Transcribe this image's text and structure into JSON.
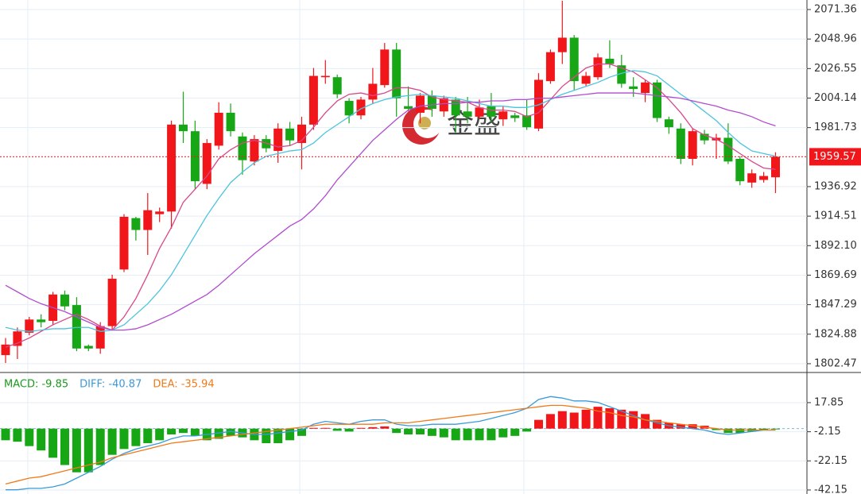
{
  "chart_data": [
    {
      "type": "candlestick",
      "watermark": "金盛",
      "ylim": [
        1796.4,
        2078.6
      ],
      "yticks": [
        2071.36,
        2048.96,
        2026.55,
        2004.14,
        1981.73,
        1936.92,
        1914.51,
        {
          "value": 1892.1,
          "label": "1892.10"
        },
        1869.69,
        1847.29,
        1824.88,
        1802.47
      ],
      "grid": true,
      "up_color": "#f0161a",
      "down_color": "#17a616",
      "last_price": 1959.57,
      "open": [
        1809,
        1816,
        1826,
        1836,
        1835,
        1855,
        1847,
        1816,
        1814,
        1831,
        1874,
        1913,
        1904,
        1916,
        1918,
        1984,
        1979,
        1939,
        1968,
        1993,
        1975,
        1956,
        1973,
        1964,
        1981,
        1970,
        1984,
        2020,
        2020,
        2002,
        1991,
        2003,
        2014,
        2041,
        1998,
        1993,
        2006,
        1994,
        2003,
        1994,
        1990,
        1998,
        1988,
        1991,
        1991,
        1981,
        2017,
        2039,
        2050,
        2015,
        2020,
        2034,
        2029,
        2013,
        2008,
        2016,
        1988,
        1981,
        1958,
        1977,
        1972,
        1974,
        1958,
        1940,
        1942,
        1944
      ],
      "high": [
        1822,
        1830,
        1838,
        1840,
        1857,
        1858,
        1853,
        1817,
        1834,
        1870,
        1916,
        1914,
        1932,
        1921,
        1987,
        2009,
        1987,
        1973,
        2001,
        2000,
        1978,
        1976,
        1976,
        1985,
        1986,
        1990,
        2027,
        2033,
        2022,
        2004,
        2005,
        2027,
        2046,
        2046,
        2013,
        2008,
        2010,
        2006,
        2005,
        2005,
        2003,
        2008,
        1998,
        1993,
        2003,
        2023,
        2041,
        2078,
        2052,
        2024,
        2038,
        2048,
        2037,
        2020,
        2018,
        2018,
        1990,
        1985,
        1981,
        1980,
        1977,
        1985,
        1960,
        1950,
        1948,
        1963
      ],
      "low": [
        1803,
        1806,
        1824,
        1830,
        1832,
        1843,
        1812,
        1812,
        1810,
        1828,
        1872,
        1896,
        1885,
        1910,
        1905,
        1970,
        1935,
        1935,
        1965,
        1975,
        1946,
        1953,
        1963,
        1955,
        1968,
        1950,
        1980,
        2015,
        2004,
        1985,
        1988,
        2000,
        2012,
        1990,
        1994,
        1985,
        1990,
        1990,
        1978,
        1985,
        1988,
        1986,
        1983,
        1986,
        1980,
        1979,
        2015,
        2030,
        2010,
        2013,
        2018,
        2027,
        2012,
        2005,
        2001,
        1986,
        1977,
        1954,
        1953,
        1969,
        1958,
        1954,
        1938,
        1936,
        1940,
        1932
      ],
      "close": [
        1817,
        1827,
        1836,
        1834,
        1855,
        1846,
        1814,
        1814,
        1831,
        1867,
        1914,
        1904,
        1919,
        1918,
        1984,
        1979,
        1941,
        1970,
        1993,
        1979,
        1957,
        1973,
        1966,
        1981,
        1972,
        1984,
        2021,
        2021,
        2007,
        1991,
        2003,
        2015,
        2041,
        2004,
        1996,
        2006,
        1996,
        2004,
        1991,
        1990,
        1997,
        1990,
        1994,
        1989,
        1982,
        2018,
        2039,
        2050,
        2017,
        2021,
        2035,
        2030,
        2015,
        2011,
        2016,
        1989,
        1982,
        1958,
        1979,
        1972,
        1974,
        1956,
        1941,
        1947,
        1945,
        1959.57
      ],
      "series": [
        {
          "color": "#d9488a",
          "values": [
            1815,
            1818,
            1822,
            1827,
            1832,
            1836,
            1840,
            1836,
            1831,
            1828,
            1838,
            1852,
            1870,
            1890,
            1906,
            1925,
            1935,
            1945,
            1958,
            1965,
            1970,
            1972,
            1970,
            1967,
            1968,
            1972,
            1982,
            1993,
            2002,
            2007,
            2008,
            2006,
            2008,
            2012,
            2012,
            2010,
            2005,
            2003,
            2002,
            2001,
            1997,
            1995,
            1995,
            1994,
            1990,
            1993,
            2003,
            2013,
            2020,
            2027,
            2030,
            2030,
            2027,
            2024,
            2018,
            2012,
            2003,
            1993,
            1981,
            1976,
            1973,
            1968,
            1962,
            1956,
            1951,
            1950
          ]
        },
        {
          "color": "#4cc3dd",
          "values": [
            1830,
            1828,
            1827,
            1828,
            1829,
            1829,
            1830,
            1830,
            1827,
            1828,
            1832,
            1840,
            1848,
            1858,
            1870,
            1885,
            1900,
            1915,
            1928,
            1940,
            1948,
            1955,
            1960,
            1962,
            1964,
            1965,
            1970,
            1978,
            1984,
            1990,
            1996,
            2000,
            2003,
            2005,
            2006,
            2007,
            2006,
            2005,
            2004,
            2002,
            2000,
            1998,
            1998,
            1997,
            1997,
            1999,
            2003,
            2007,
            2010,
            2013,
            2016,
            2020,
            2023,
            2025,
            2024,
            2021,
            2014,
            2007,
            2001,
            1994,
            1987,
            1978,
            1970,
            1964,
            1962,
            1960
          ]
        },
        {
          "color": "#b04ccf",
          "values": [
            1862,
            1857,
            1852,
            1848,
            1845,
            1842,
            1838,
            1834,
            1830,
            1828,
            1828,
            1829,
            1832,
            1836,
            1840,
            1845,
            1850,
            1855,
            1862,
            1870,
            1878,
            1886,
            1893,
            1900,
            1907,
            1912,
            1920,
            1930,
            1942,
            1952,
            1962,
            1972,
            1980,
            1988,
            1995,
            1998,
            1999,
            2000,
            2000,
            2001,
            2001,
            2002,
            2002,
            2003,
            2003,
            2004,
            2004,
            2005,
            2006,
            2007,
            2008,
            2008,
            2008,
            2008,
            2007,
            2006,
            2005,
            2004,
            2002,
            2000,
            1998,
            1995,
            1993,
            1990,
            1986,
            1983
          ]
        }
      ]
    },
    {
      "type": "macd",
      "ylim": [
        -44.9,
        38.0
      ],
      "yticks": [
        17.85,
        -2.15,
        -22.15,
        -42.15
      ],
      "grid": true,
      "series": [
        {
          "name": "MACD: -9.85",
          "color": "#1b9a1b",
          "up_color": "#f0161a",
          "down_color": "#17a616",
          "values": [
            -8,
            -9,
            -12,
            -15,
            -20,
            -25,
            -30,
            -30,
            -25,
            -18,
            -14,
            -12,
            -10,
            -8,
            -4,
            -3,
            -5,
            -8,
            -7,
            -5,
            -6,
            -8,
            -10,
            -10,
            -8,
            -5,
            0.5,
            0.5,
            -1.5,
            -2,
            0.5,
            1,
            1.5,
            -3,
            -4,
            -4,
            -5,
            -6,
            -8,
            -8,
            -8,
            -8,
            -6,
            -5,
            -2,
            6,
            10,
            12,
            11,
            13,
            15,
            14,
            13,
            12,
            10,
            6,
            4,
            3,
            3,
            2,
            -1,
            -3,
            -3,
            -2,
            -1,
            -0.5
          ]
        },
        {
          "name": "DIFF: -40.87",
          "color": "#3a9ad9",
          "values": [
            -42,
            -42,
            -41,
            -41,
            -40,
            -38,
            -34,
            -30,
            -26,
            -21,
            -17,
            -14,
            -12,
            -10,
            -7,
            -5,
            -5,
            -4,
            -3,
            -2,
            -3,
            -4,
            -4,
            -3,
            -2,
            -1,
            3,
            5,
            4,
            3,
            5,
            6,
            6,
            3,
            2,
            2,
            3,
            3,
            3,
            4,
            5,
            7,
            9,
            11,
            14,
            20,
            22,
            21,
            19,
            19,
            18,
            15,
            12,
            9,
            6,
            4,
            2,
            1,
            0,
            -1,
            -3,
            -4,
            -3,
            -2,
            -1,
            -1
          ]
        },
        {
          "name": "DEA: -35.94",
          "color": "#f07a1a",
          "values": [
            -38,
            -36,
            -34,
            -33,
            -31,
            -29,
            -27,
            -25,
            -23,
            -20,
            -18,
            -16,
            -14,
            -12,
            -10,
            -9,
            -8,
            -7,
            -6,
            -5,
            -4,
            -3,
            -2,
            -1,
            0,
            1,
            2,
            3,
            3,
            3,
            3,
            3,
            4,
            4,
            4,
            5,
            6,
            7,
            8,
            9,
            10,
            11,
            12,
            13,
            14,
            15,
            16,
            16,
            15,
            14,
            12,
            11,
            9,
            8,
            6,
            5,
            4,
            3,
            2,
            1,
            0,
            -1,
            -1,
            -1,
            -1,
            -1
          ]
        }
      ]
    }
  ]
}
